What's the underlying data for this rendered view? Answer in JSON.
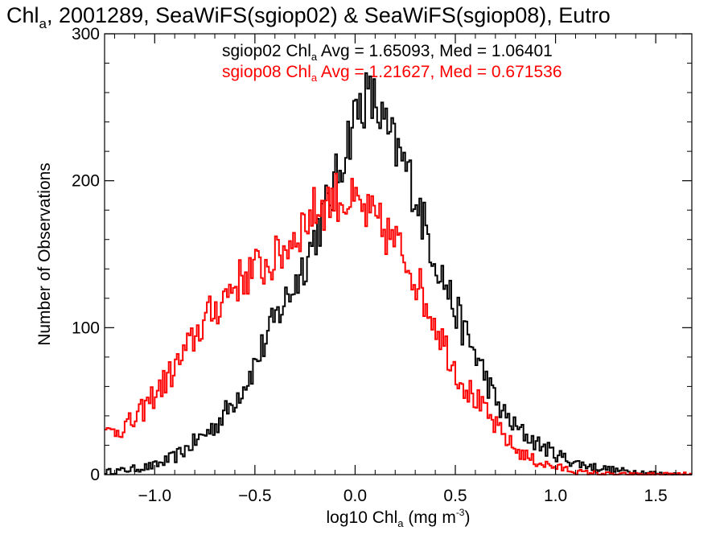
{
  "chart_data": {
    "type": "line",
    "title": {
      "prefix": "Chl",
      "sub": "a",
      "rest": ", 2001289, SeaWiFS(sgiop02) & SeaWiFS(sgiop08), Eutro"
    },
    "xlabel": {
      "prefix": "log10 Chl",
      "sub": "a",
      "middle": " (mg m",
      "sup": "-3",
      "suffix": ")"
    },
    "ylabel": "Number of Observations",
    "xlim": [
      -1.25,
      1.68
    ],
    "ylim": [
      0,
      300
    ],
    "x_ticks": [
      {
        "value": -1.0,
        "label": "−1.0"
      },
      {
        "value": -0.5,
        "label": "−0.5"
      },
      {
        "value": 0.0,
        "label": "0.0"
      },
      {
        "value": 0.5,
        "label": "0.5"
      },
      {
        "value": 1.0,
        "label": "1.0"
      },
      {
        "value": 1.5,
        "label": "1.5"
      }
    ],
    "y_ticks": [
      {
        "value": 0,
        "label": "0"
      },
      {
        "value": 100,
        "label": "100"
      },
      {
        "value": 200,
        "label": "200"
      },
      {
        "value": 300,
        "label": "300"
      }
    ],
    "grid": false,
    "legend_position": "top-center",
    "bin_width": 0.01,
    "series": [
      {
        "color": "#000000",
        "stats": {
          "prefix": "sgiop02 Chl",
          "sub": "a",
          "rest": " Avg = 1.65093, Med = 1.06401"
        },
        "knots": [
          [
            -1.25,
            2
          ],
          [
            -1.15,
            3
          ],
          [
            -1.0,
            6
          ],
          [
            -0.9,
            12
          ],
          [
            -0.8,
            22
          ],
          [
            -0.7,
            33
          ],
          [
            -0.62,
            47
          ],
          [
            -0.55,
            62
          ],
          [
            -0.5,
            75
          ],
          [
            -0.45,
            90
          ],
          [
            -0.4,
            105
          ],
          [
            -0.35,
            118
          ],
          [
            -0.3,
            130
          ],
          [
            -0.25,
            145
          ],
          [
            -0.2,
            162
          ],
          [
            -0.15,
            180
          ],
          [
            -0.1,
            198
          ],
          [
            -0.05,
            222
          ],
          [
            0.0,
            245
          ],
          [
            0.05,
            257
          ],
          [
            0.1,
            253
          ],
          [
            0.15,
            235
          ],
          [
            0.2,
            222
          ],
          [
            0.25,
            210
          ],
          [
            0.3,
            192
          ],
          [
            0.35,
            168
          ],
          [
            0.4,
            148
          ],
          [
            0.45,
            130
          ],
          [
            0.5,
            112
          ],
          [
            0.55,
            96
          ],
          [
            0.6,
            82
          ],
          [
            0.65,
            67
          ],
          [
            0.7,
            50
          ],
          [
            0.75,
            40
          ],
          [
            0.8,
            32
          ],
          [
            0.9,
            22
          ],
          [
            1.0,
            14
          ],
          [
            1.1,
            8
          ],
          [
            1.2,
            5
          ],
          [
            1.3,
            3
          ],
          [
            1.4,
            2
          ],
          [
            1.5,
            1
          ],
          [
            1.55,
            0
          ],
          [
            1.68,
            0
          ]
        ]
      },
      {
        "color": "#ff0000",
        "stats": {
          "prefix": "sgiop08 Chl",
          "sub": "a",
          "rest": " Avg = 1.21627, Med = 0.671536"
        },
        "knots": [
          [
            -1.25,
            27
          ],
          [
            -1.2,
            30
          ],
          [
            -1.15,
            33
          ],
          [
            -1.1,
            36
          ],
          [
            -1.0,
            55
          ],
          [
            -0.95,
            63
          ],
          [
            -0.9,
            72
          ],
          [
            -0.85,
            82
          ],
          [
            -0.8,
            94
          ],
          [
            -0.75,
            105
          ],
          [
            -0.7,
            112
          ],
          [
            -0.65,
            122
          ],
          [
            -0.6,
            130
          ],
          [
            -0.5,
            140
          ],
          [
            -0.45,
            142
          ],
          [
            -0.4,
            146
          ],
          [
            -0.35,
            154
          ],
          [
            -0.3,
            163
          ],
          [
            -0.25,
            172
          ],
          [
            -0.2,
            180
          ],
          [
            -0.15,
            184
          ],
          [
            -0.1,
            190
          ],
          [
            -0.05,
            187
          ],
          [
            0.0,
            183
          ],
          [
            0.05,
            178
          ],
          [
            0.1,
            172
          ],
          [
            0.15,
            165
          ],
          [
            0.2,
            158
          ],
          [
            0.25,
            148
          ],
          [
            0.3,
            135
          ],
          [
            0.35,
            118
          ],
          [
            0.4,
            104
          ],
          [
            0.45,
            88
          ],
          [
            0.5,
            72
          ],
          [
            0.55,
            60
          ],
          [
            0.6,
            52
          ],
          [
            0.65,
            42
          ],
          [
            0.7,
            33
          ],
          [
            0.75,
            25
          ],
          [
            0.8,
            17
          ],
          [
            0.85,
            13
          ],
          [
            0.9,
            9
          ],
          [
            1.0,
            5
          ],
          [
            1.05,
            4
          ],
          [
            1.1,
            2
          ],
          [
            1.2,
            1
          ],
          [
            1.3,
            0
          ],
          [
            1.68,
            0
          ]
        ]
      }
    ]
  }
}
